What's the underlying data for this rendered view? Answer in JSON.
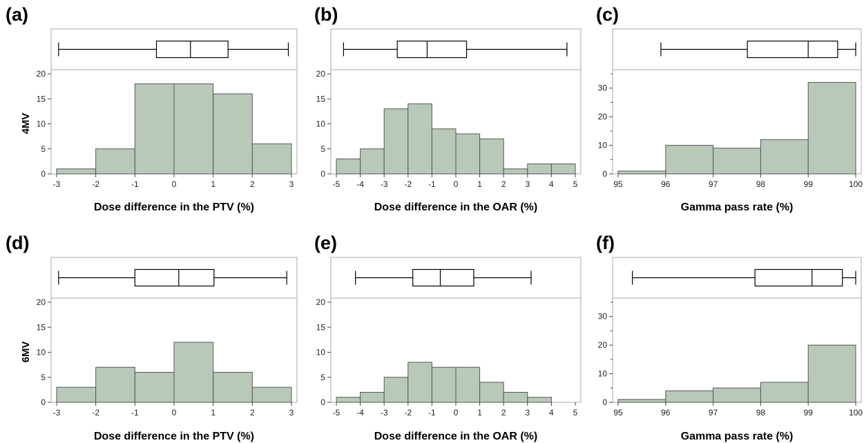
{
  "figure": {
    "bar_color": "#b9c9b9",
    "bar_edge_color": "#555555",
    "frame_color": "#aaaaaa"
  },
  "chart_data": [
    {
      "panel_label": "(a)",
      "row_label": "4MV",
      "type": "bar",
      "xlabel": "Dose difference in the PTV (%)",
      "ylabel": "4MV",
      "xlim": [
        -3,
        3
      ],
      "ylim": [
        0,
        20
      ],
      "xticks": [
        -3,
        -2,
        -1,
        0,
        1,
        2,
        3
      ],
      "xtick_labels": [
        "-3",
        "-2",
        "-1",
        "0",
        "1",
        "2",
        "3"
      ],
      "yticks": [
        0,
        5,
        10,
        15,
        20
      ],
      "minor_yticks": [],
      "bins": [
        [
          -3,
          -2
        ],
        [
          -2,
          -1
        ],
        [
          -1,
          0
        ],
        [
          0,
          1
        ],
        [
          1,
          2
        ],
        [
          2,
          3
        ]
      ],
      "values": [
        1,
        5,
        18,
        18,
        16,
        6
      ],
      "boxplot": {
        "min": -2.95,
        "q1": -0.45,
        "median": 0.42,
        "q3": 1.38,
        "max": 2.92
      }
    },
    {
      "panel_label": "(b)",
      "type": "bar",
      "xlabel": "Dose difference in the OAR (%)",
      "xlim": [
        -5,
        5
      ],
      "ylim": [
        0,
        20
      ],
      "xticks": [
        -5,
        -4,
        -3,
        -2,
        -1,
        0,
        1,
        2,
        3,
        4,
        5
      ],
      "xtick_labels": [
        "-5",
        "-4",
        "-3",
        "-2",
        "-1",
        "0",
        "1",
        "2",
        "3",
        "4",
        "5"
      ],
      "yticks": [
        0,
        5,
        10,
        15,
        20
      ],
      "minor_yticks": [],
      "bins": [
        [
          -5,
          -4
        ],
        [
          -4,
          -3
        ],
        [
          -3,
          -2
        ],
        [
          -2,
          -1
        ],
        [
          -1,
          0
        ],
        [
          0,
          1
        ],
        [
          1,
          2
        ],
        [
          2,
          3
        ],
        [
          3,
          4
        ],
        [
          4,
          5
        ]
      ],
      "values": [
        3,
        5,
        13,
        14,
        9,
        8,
        7,
        1,
        2,
        2
      ],
      "boxplot": {
        "min": -4.7,
        "q1": -2.45,
        "median": -1.2,
        "q3": 0.45,
        "max": 4.65
      }
    },
    {
      "panel_label": "(c)",
      "type": "bar",
      "xlabel": "Gamma pass rate (%)",
      "xlim": [
        95,
        100
      ],
      "ylim": [
        0,
        35
      ],
      "xticks": [
        95,
        96,
        97,
        98,
        99,
        100
      ],
      "xtick_labels": [
        "95",
        "96",
        "97",
        "98",
        "99",
        "100"
      ],
      "yticks": [
        0,
        10,
        20,
        30
      ],
      "minor_yticks": [
        5,
        15,
        25,
        35
      ],
      "bins": [
        [
          95,
          96
        ],
        [
          96,
          97
        ],
        [
          97,
          98
        ],
        [
          98,
          99
        ],
        [
          99,
          100
        ]
      ],
      "values": [
        1,
        10,
        9,
        12,
        32
      ],
      "boxplot": {
        "min": 95.9,
        "q1": 97.72,
        "median": 99.0,
        "q3": 99.62,
        "max": 100
      }
    },
    {
      "panel_label": "(d)",
      "row_label": "6MV",
      "type": "bar",
      "xlabel": "Dose difference in the PTV (%)",
      "ylabel": "6MV",
      "xlim": [
        -3,
        3
      ],
      "ylim": [
        0,
        20
      ],
      "xticks": [
        -3,
        -2,
        -1,
        0,
        1,
        2,
        3
      ],
      "xtick_labels": [
        "-3",
        "-2",
        "-1",
        "0",
        "1",
        "2",
        "3"
      ],
      "yticks": [
        0,
        5,
        10,
        15,
        20
      ],
      "minor_yticks": [],
      "bins": [
        [
          -3,
          -2
        ],
        [
          -2,
          -1
        ],
        [
          -1,
          0
        ],
        [
          0,
          1
        ],
        [
          1,
          2
        ],
        [
          2,
          3
        ]
      ],
      "values": [
        3,
        7,
        6,
        12,
        6,
        3
      ],
      "boxplot": {
        "min": -2.95,
        "q1": -1.0,
        "median": 0.12,
        "q3": 1.02,
        "max": 2.88
      }
    },
    {
      "panel_label": "(e)",
      "type": "bar",
      "xlabel": "Dose difference in the OAR (%)",
      "xlim": [
        -5,
        5
      ],
      "ylim": [
        0,
        20
      ],
      "xticks": [
        -5,
        -4,
        -3,
        -2,
        -1,
        0,
        1,
        2,
        3,
        4,
        5
      ],
      "xtick_labels": [
        "-5",
        "-4",
        "-3",
        "-2",
        "-1",
        "0",
        "1",
        "2",
        "3",
        "4",
        "5"
      ],
      "yticks": [
        0,
        5,
        10,
        15,
        20
      ],
      "minor_yticks": [],
      "bins": [
        [
          -5,
          -4
        ],
        [
          -4,
          -3
        ],
        [
          -3,
          -2
        ],
        [
          -2,
          -1
        ],
        [
          -1,
          0
        ],
        [
          0,
          1
        ],
        [
          1,
          2
        ],
        [
          2,
          3
        ],
        [
          3,
          4
        ]
      ],
      "values": [
        1,
        2,
        5,
        8,
        7,
        7,
        4,
        2,
        1
      ],
      "boxplot": {
        "min": -4.2,
        "q1": -1.8,
        "median": -0.65,
        "q3": 0.75,
        "max": 3.15
      }
    },
    {
      "panel_label": "(f)",
      "type": "bar",
      "xlabel": "Gamma pass rate (%)",
      "xlim": [
        95,
        100
      ],
      "ylim": [
        0,
        35
      ],
      "xticks": [
        95,
        96,
        97,
        98,
        99,
        100
      ],
      "xtick_labels": [
        "95",
        "96",
        "97",
        "98",
        "99",
        "100"
      ],
      "yticks": [
        0,
        10,
        20,
        30
      ],
      "minor_yticks": [
        5,
        15,
        25,
        35
      ],
      "bins": [
        [
          95,
          96
        ],
        [
          96,
          97
        ],
        [
          97,
          98
        ],
        [
          98,
          99
        ],
        [
          99,
          100
        ]
      ],
      "values": [
        1,
        4,
        5,
        7,
        20
      ],
      "boxplot": {
        "min": 95.3,
        "q1": 97.88,
        "median": 99.08,
        "q3": 99.72,
        "max": 100
      }
    }
  ]
}
